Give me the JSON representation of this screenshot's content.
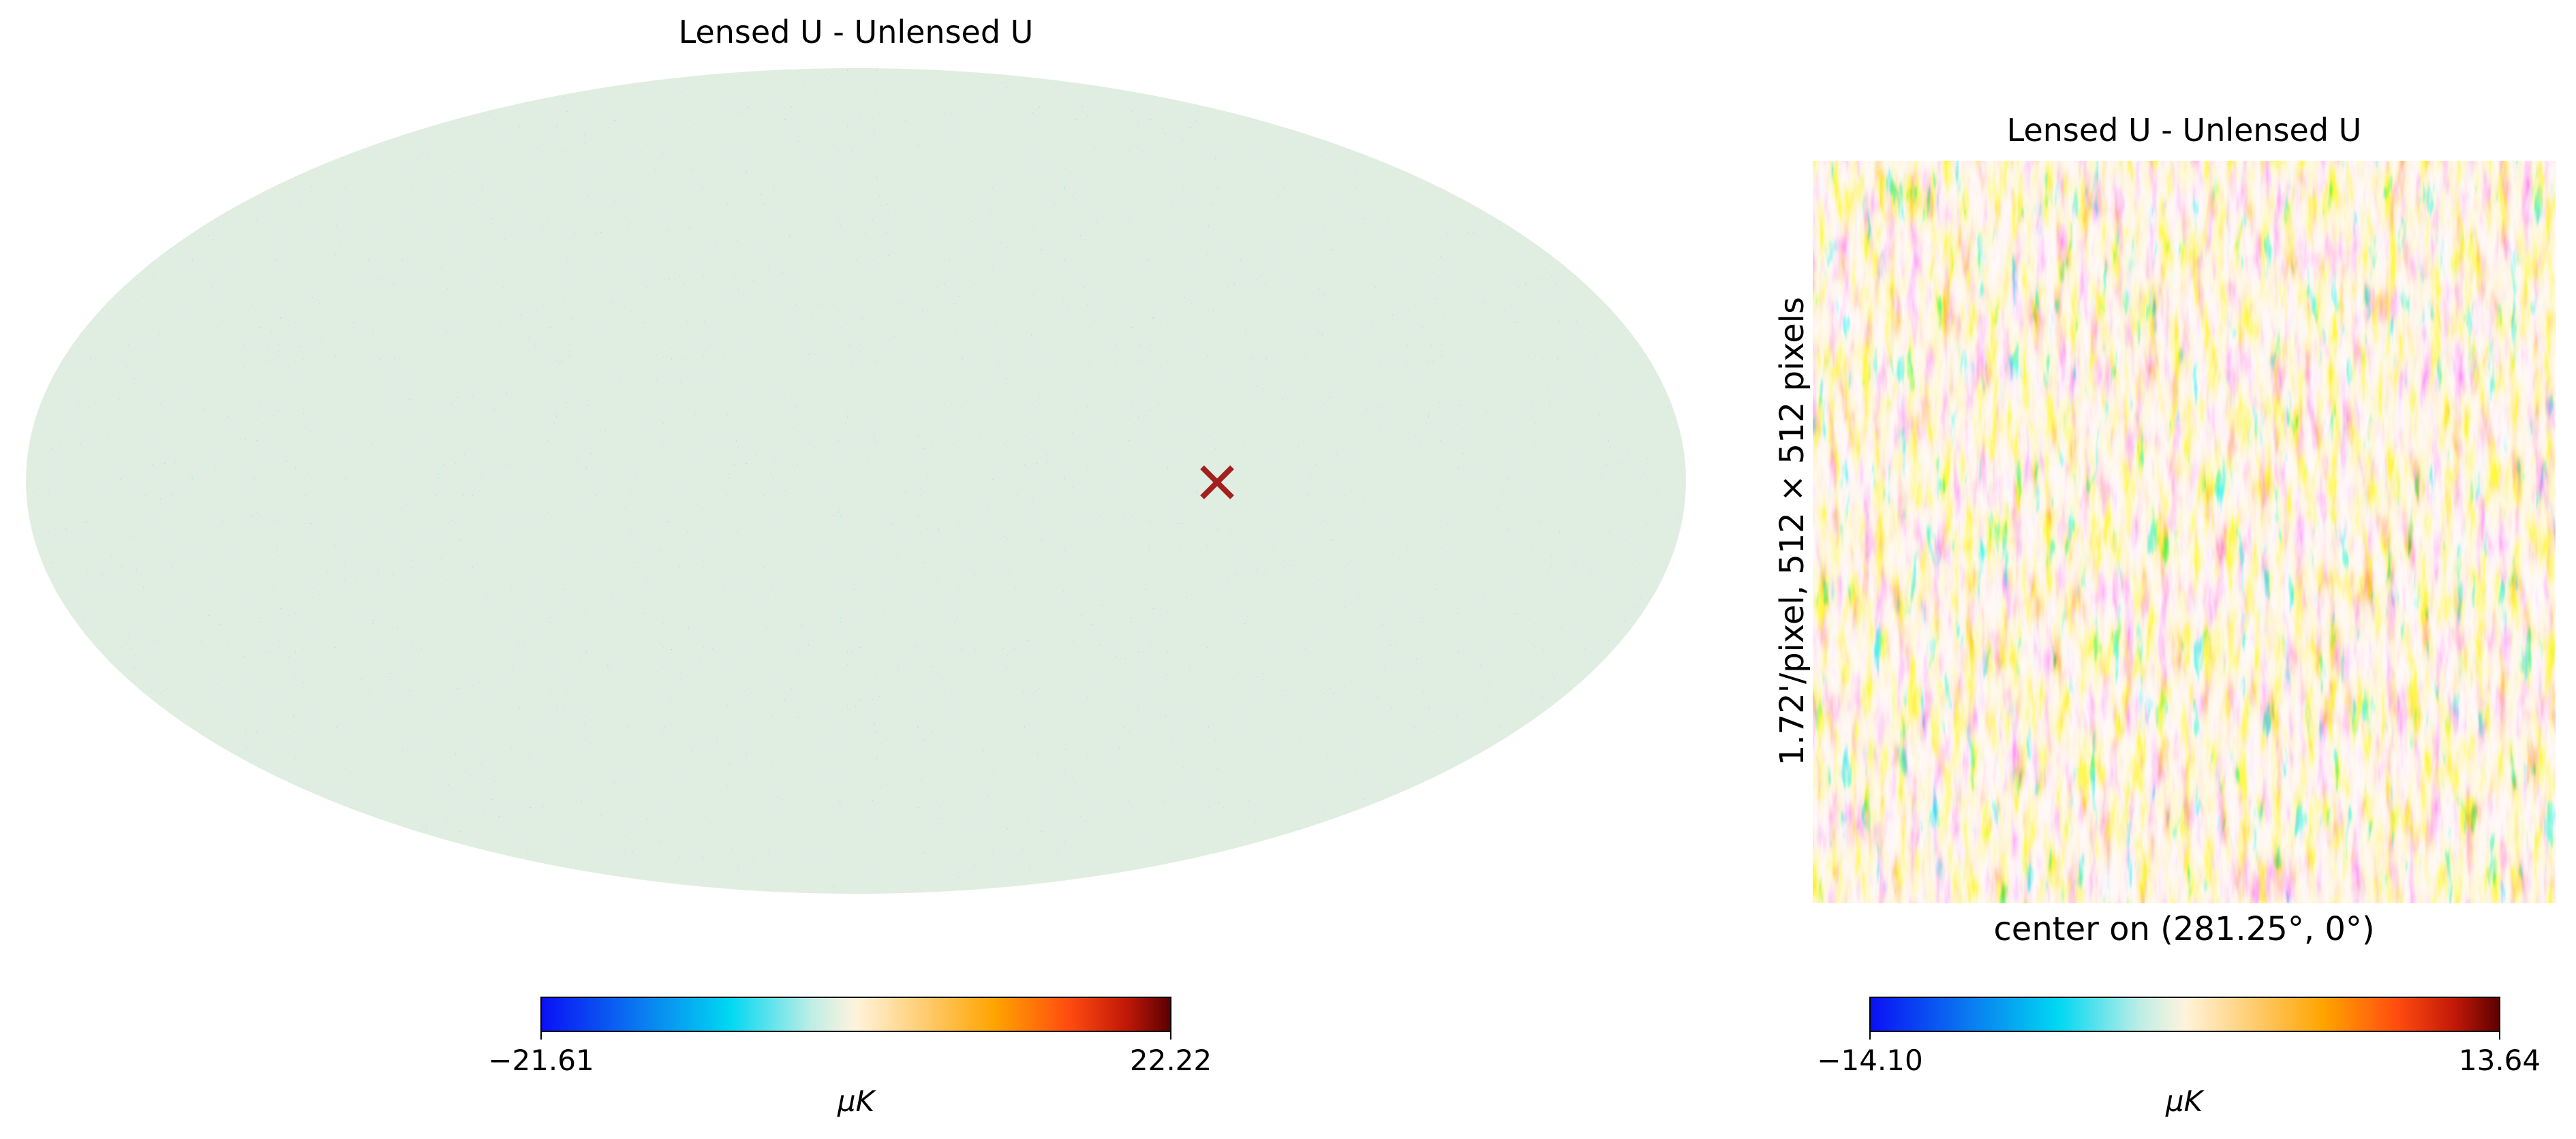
{
  "chart_data": [
    {
      "type": "heatmap",
      "projection": "mollweide",
      "title": "Lensed U - Unlensed U",
      "colormap": [
        "#0a10f5",
        "#0aa8ee",
        "#00ddf0",
        "#d8f0e8",
        "#fff5e0",
        "#ffc860",
        "#ffa400",
        "#ff4a10",
        "#c01808",
        "#5a0000"
      ],
      "colorbar": {
        "min": -21.61,
        "max": 22.22,
        "min_label": "−21.61",
        "max_label": "22.22",
        "unit": "μK"
      },
      "marker": {
        "shape": "x",
        "color": "#a32020"
      }
    },
    {
      "type": "heatmap",
      "projection": "gnomonic",
      "title": "Lensed U - Unlensed U",
      "ylabel": "1.72'/pixel, 512 × 512 pixels",
      "xlabel": "center on (281.25°, 0°)",
      "colorbar": {
        "min": -14.1,
        "max": 13.64,
        "min_label": "−14.10",
        "max_label": "13.64",
        "unit": "μK"
      }
    }
  ]
}
